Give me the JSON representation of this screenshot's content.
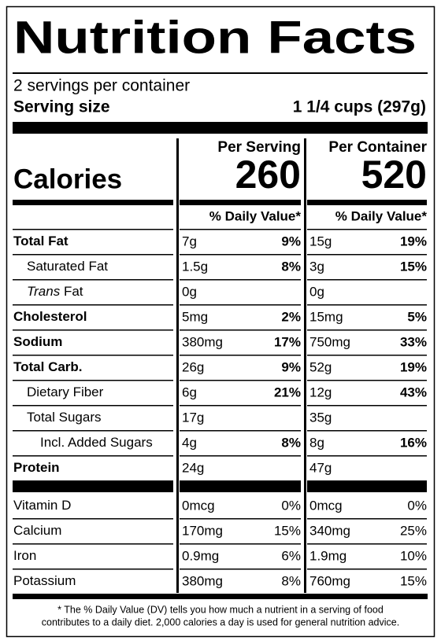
{
  "title": "Nutrition Facts",
  "servings": "2 servings per container",
  "serving_size_label": "Serving size",
  "serving_size": "1 1/4 cups (297g)",
  "calories_label": "Calories",
  "columns": [
    {
      "heading": "Per Serving",
      "calories": "260",
      "dv_heading": "% Daily Value*"
    },
    {
      "heading": "Per Container",
      "calories": "520",
      "dv_heading": "% Daily Value*"
    }
  ],
  "nutrients": [
    {
      "label": "Total Fat",
      "bold": true,
      "indent": 0,
      "values": [
        [
          "7g",
          "9%"
        ],
        [
          "15g",
          "19%"
        ]
      ]
    },
    {
      "label": "Saturated Fat",
      "bold": false,
      "indent": 1,
      "values": [
        [
          "1.5g",
          "8%"
        ],
        [
          "3g",
          "15%"
        ]
      ]
    },
    {
      "label_italic": "Trans",
      "label": "Fat",
      "bold": false,
      "indent": 1,
      "values": [
        [
          "0g",
          null
        ],
        [
          "0g",
          null
        ]
      ]
    },
    {
      "label": "Cholesterol",
      "bold": true,
      "indent": 0,
      "values": [
        [
          "5mg",
          "2%"
        ],
        [
          "15mg",
          "5%"
        ]
      ]
    },
    {
      "label": "Sodium",
      "bold": true,
      "indent": 0,
      "values": [
        [
          "380mg",
          "17%"
        ],
        [
          "750mg",
          "33%"
        ]
      ]
    },
    {
      "label": "Total Carb.",
      "bold": true,
      "indent": 0,
      "values": [
        [
          "26g",
          "9%"
        ],
        [
          "52g",
          "19%"
        ]
      ]
    },
    {
      "label": "Dietary Fiber",
      "bold": false,
      "indent": 1,
      "values": [
        [
          "6g",
          "21%"
        ],
        [
          "12g",
          "43%"
        ]
      ]
    },
    {
      "label": "Total Sugars",
      "bold": false,
      "indent": 1,
      "values": [
        [
          "17g",
          null
        ],
        [
          "35g",
          null
        ]
      ]
    },
    {
      "label": "Incl. Added Sugars",
      "bold": false,
      "indent": 2,
      "values": [
        [
          "4g",
          "8%"
        ],
        [
          "8g",
          "16%"
        ]
      ]
    },
    {
      "label": "Protein",
      "bold": true,
      "indent": 0,
      "values": [
        [
          "24g",
          null
        ],
        [
          "47g",
          null
        ]
      ]
    }
  ],
  "vitamins": [
    {
      "label": "Vitamin D",
      "values": [
        [
          "0mcg",
          "0%"
        ],
        [
          "0mcg",
          "0%"
        ]
      ]
    },
    {
      "label": "Calcium",
      "values": [
        [
          "170mg",
          "15%"
        ],
        [
          "340mg",
          "25%"
        ]
      ]
    },
    {
      "label": "Iron",
      "values": [
        [
          "0.9mg",
          "6%"
        ],
        [
          "1.9mg",
          "10%"
        ]
      ]
    },
    {
      "label": "Potassium",
      "values": [
        [
          "380mg",
          "8%"
        ],
        [
          "760mg",
          "15%"
        ]
      ]
    }
  ],
  "footnote": [
    "* The % Daily Value (DV) tells you how much a nutrient in a serving of food",
    "contributes to a daily diet. 2,000 calories a day is used for general nutrition advice."
  ]
}
